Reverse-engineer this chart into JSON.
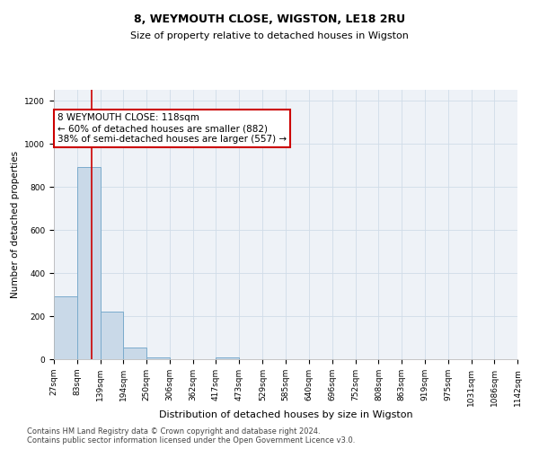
{
  "title": "8, WEYMOUTH CLOSE, WIGSTON, LE18 2RU",
  "subtitle": "Size of property relative to detached houses in Wigston",
  "xlabel": "Distribution of detached houses by size in Wigston",
  "ylabel": "Number of detached properties",
  "bin_edges": [
    27,
    83,
    139,
    194,
    250,
    306,
    362,
    417,
    473,
    529,
    585,
    640,
    696,
    752,
    808,
    863,
    919,
    975,
    1031,
    1086,
    1142
  ],
  "bar_heights": [
    290,
    890,
    220,
    55,
    10,
    0,
    0,
    10,
    0,
    0,
    0,
    0,
    0,
    0,
    0,
    0,
    0,
    0,
    0,
    0
  ],
  "bar_color": "#c9d9e8",
  "bar_edgecolor": "#7aabcc",
  "property_size": 118,
  "red_line_color": "#cc0000",
  "annotation_text": "8 WEYMOUTH CLOSE: 118sqm\n← 60% of detached houses are smaller (882)\n38% of semi-detached houses are larger (557) →",
  "annotation_box_edgecolor": "#cc0000",
  "annotation_box_facecolor": "#ffffff",
  "ylim": [
    0,
    1250
  ],
  "yticks": [
    0,
    200,
    400,
    600,
    800,
    1000,
    1200
  ],
  "grid_color": "#d0dce8",
  "background_color": "#eef2f7",
  "footer_text": "Contains HM Land Registry data © Crown copyright and database right 2024.\nContains public sector information licensed under the Open Government Licence v3.0.",
  "title_fontsize": 9,
  "subtitle_fontsize": 8,
  "xlabel_fontsize": 8,
  "ylabel_fontsize": 7.5,
  "tick_fontsize": 6.5,
  "annotation_fontsize": 7.5,
  "footer_fontsize": 6
}
